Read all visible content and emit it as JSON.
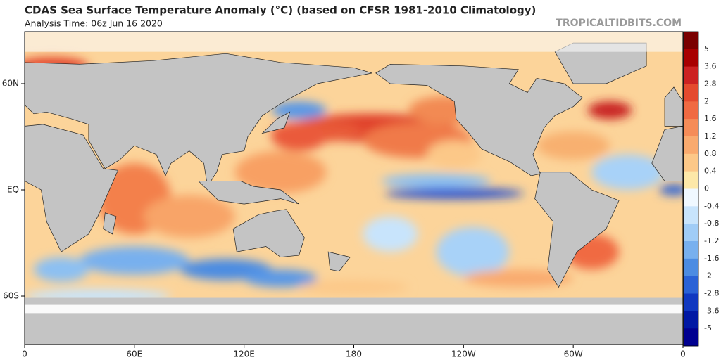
{
  "header": {
    "title": "CDAS Sea Surface Temperature Anomaly (°C) (based on CFSR 1981-2010 Climatology)",
    "subtitle": "Analysis Time: 06z Jun 16 2020",
    "watermark": "TROPICALTIDBITS.COM"
  },
  "map": {
    "x_labels": [
      "0",
      "60E",
      "120E",
      "180",
      "120W",
      "60W",
      "0"
    ],
    "y_labels": [
      "60N",
      "EQ",
      "60S"
    ]
  },
  "colorbar": {
    "ticks": [
      5,
      3.6,
      2.8,
      2,
      1.6,
      1.2,
      0.8,
      0.4,
      0,
      -0.4,
      -0.8,
      -1.2,
      -1.6,
      -2,
      -2.8,
      -3.6,
      -5
    ],
    "colors": [
      "#7a0000",
      "#a80000",
      "#cc2222",
      "#e44a2e",
      "#f06a42",
      "#f58c58",
      "#f9aa6e",
      "#fcc888",
      "#fde8a8",
      "#f0f8ff",
      "#c8e4fc",
      "#a0ccf6",
      "#78b0ee",
      "#4c8ce2",
      "#2a62d6",
      "#1038c0",
      "#0018a4",
      "#000090"
    ]
  }
}
